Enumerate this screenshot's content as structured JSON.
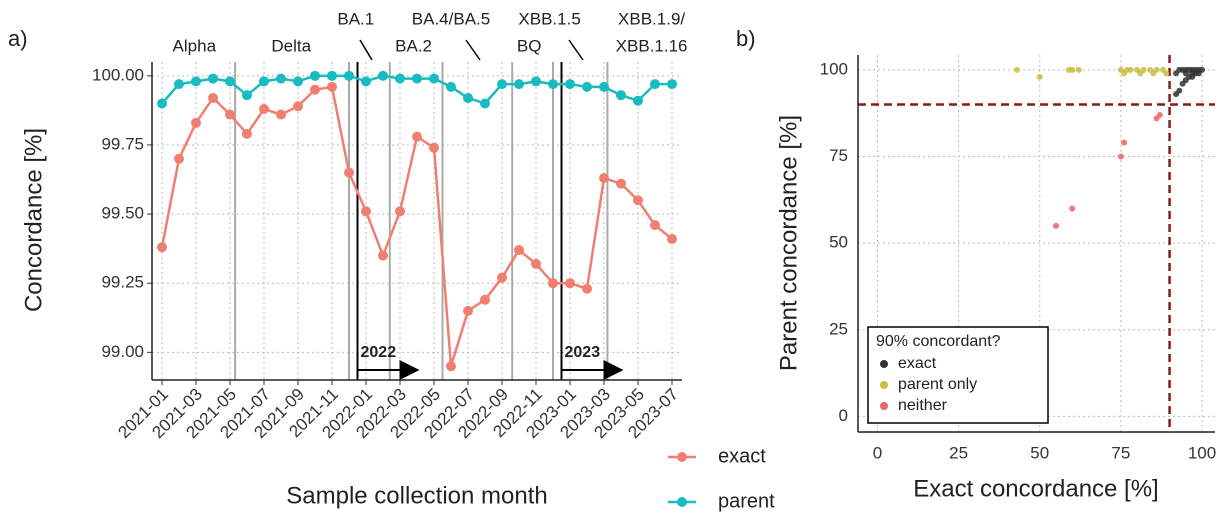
{
  "chart_data": [
    {
      "type": "line",
      "panel_label": "a)",
      "x_label": "Sample collection month",
      "y_label": "Concordance [%]",
      "categories": [
        "2021-01",
        null,
        "2021-03",
        null,
        "2021-05",
        null,
        "2021-07",
        null,
        "2021-09",
        null,
        "2021-11",
        null,
        "2022-01",
        null,
        "2022-03",
        null,
        "2022-05",
        null,
        "2022-07",
        null,
        "2022-09",
        null,
        "2022-11",
        null,
        "2023-01",
        null,
        "2023-03",
        null,
        "2023-05",
        null,
        "2023-07"
      ],
      "series": [
        {
          "name": "exact",
          "color": "#f07f72",
          "values": [
            99.38,
            99.7,
            99.83,
            99.92,
            99.86,
            99.79,
            99.88,
            99.86,
            99.89,
            99.95,
            99.96,
            99.65,
            99.51,
            99.35,
            99.51,
            99.78,
            99.74,
            98.95,
            99.15,
            99.19,
            99.27,
            99.37,
            99.32,
            99.25,
            99.25,
            99.23,
            99.63,
            99.61,
            99.55,
            99.46,
            99.41
          ]
        },
        {
          "name": "parent",
          "color": "#18bcc0",
          "values": [
            99.9,
            99.97,
            99.98,
            99.99,
            99.98,
            99.93,
            99.98,
            99.99,
            99.98,
            100.0,
            100.0,
            100.0,
            99.98,
            100.0,
            99.99,
            99.99,
            99.99,
            99.96,
            99.92,
            99.9,
            99.97,
            99.97,
            99.98,
            99.97,
            99.97,
            99.96,
            99.96,
            99.93,
            99.91,
            99.97,
            99.97
          ]
        }
      ],
      "ylim": [
        98.9,
        100.05
      ],
      "yticks": [
        {
          "value": 99,
          "label": "99.00"
        },
        {
          "value": 99.25,
          "label": "99.25"
        },
        {
          "value": 99.5,
          "label": "99.50"
        },
        {
          "value": 99.75,
          "label": "99.75"
        },
        {
          "value": 100,
          "label": "100.00"
        }
      ],
      "grid": true,
      "variant_boundaries": [
        4.3,
        11.0,
        13.4,
        16.5,
        20.6,
        23.0,
        26.2
      ],
      "year_lines": [
        {
          "at": 11.5,
          "label": "2022"
        },
        {
          "at": 23.5,
          "label": "2023"
        }
      ],
      "variants": [
        {
          "label": "Alpha",
          "at": 1.9
        },
        {
          "label": "Delta",
          "at": 7.6
        },
        {
          "label": "BA.1",
          "at": 11.4
        },
        {
          "label": "BA.2",
          "at": 14.8
        },
        {
          "label": "BA.4/BA.5",
          "at": 17.0
        },
        {
          "label": "BQ",
          "at": 21.6
        },
        {
          "label": "XBB.1.5",
          "at": 22.8
        },
        {
          "label": "XBB.1.9/",
          "at": 28.8
        },
        {
          "label": "XBB.1.16",
          "at": 28.8
        }
      ]
    },
    {
      "type": "scatter",
      "panel_label": "b)",
      "x_label": "Exact concordance [%]",
      "y_label": "Parent concordance [%]",
      "legend_title": "90% concordant?",
      "legend": "bottom-left",
      "series": [
        {
          "name": "exact",
          "color": "#333333",
          "x": [
            92,
            93,
            94,
            95,
            96,
            97,
            98,
            99,
            100,
            96,
            94,
            92,
            93,
            95,
            97,
            99,
            95,
            97,
            98
          ],
          "values": [
            93,
            94,
            96,
            97,
            98,
            99,
            100,
            100,
            100,
            100,
            100,
            99,
            100,
            100,
            100,
            99,
            99,
            98,
            99
          ]
        },
        {
          "name": "parent only",
          "color": "#cdbb3d",
          "x": [
            43,
            50,
            59,
            60,
            62,
            75,
            76,
            77,
            78,
            80,
            81,
            82,
            84,
            85,
            86,
            88,
            89
          ],
          "values": [
            100,
            98,
            100,
            100,
            100,
            100,
            99,
            100,
            100,
            100,
            99,
            100,
            100,
            99,
            100,
            100,
            99
          ]
        },
        {
          "name": "neither",
          "color": "#ef6464",
          "x": [
            55,
            60,
            75,
            76,
            86,
            87
          ],
          "values": [
            55,
            60,
            75,
            79,
            86,
            87
          ]
        }
      ],
      "xlim": [
        -6,
        104
      ],
      "ylim": [
        -4.5,
        104.3
      ],
      "xticks": [
        0,
        25,
        50,
        75,
        100
      ],
      "yticks": [
        0,
        25,
        50,
        75,
        100
      ],
      "grid": true,
      "hline": 90,
      "vline": 90,
      "ref_color": "#8b1a1a"
    }
  ]
}
